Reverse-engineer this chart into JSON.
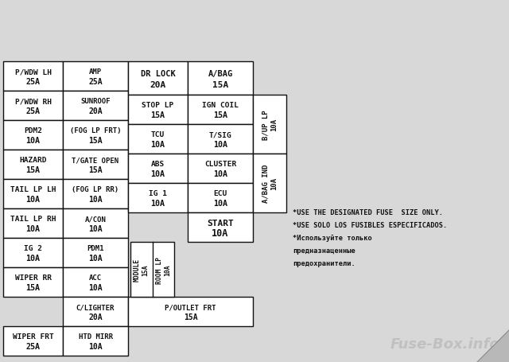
{
  "bg_color": "#e8e8e8",
  "grid_color": "#111111",
  "text_color": "#111111",
  "watermark": "Fuse-Box.info",
  "note_lines": [
    "*USE THE DESIGNATED FUSE  SIZE ONLY.",
    "*USE SOLO LOS FUSIBLES ESPECIFICADOS.",
    "*Используйте только",
    "предназнаценные",
    "предохранители."
  ],
  "left_col1": [
    [
      "P/WDW LH",
      "25A"
    ],
    [
      "P/WDW RH",
      "25A"
    ],
    [
      "PDM2",
      "10A"
    ],
    [
      "HAZARD",
      "15A"
    ],
    [
      "TAIL LP LH",
      "10A"
    ],
    [
      "TAIL LP RH",
      "10A"
    ],
    [
      "IG 2",
      "10A"
    ],
    [
      "WIPER RR",
      "15A"
    ],
    [
      "",
      ""
    ],
    [
      "WIPER FRT",
      "25A"
    ]
  ],
  "left_col2": [
    [
      "AMP",
      "25A"
    ],
    [
      "SUNROOF",
      "20A"
    ],
    [
      "(FOG LP FRT)",
      "15A"
    ],
    [
      "T/GATE OPEN",
      "15A"
    ],
    [
      "(FOG LP RR)",
      "10A"
    ],
    [
      "A/CON",
      "10A"
    ],
    [
      "PDM1",
      "10A"
    ],
    [
      "ACC",
      "10A"
    ],
    [
      "C/LIGHTER",
      "20A"
    ],
    [
      "HTD MIRR",
      "10A"
    ]
  ],
  "top_row": [
    [
      "DR LOCK",
      "20A"
    ],
    [
      "A/BAG",
      "15A"
    ]
  ],
  "right_grid_left": [
    [
      "STOP LP",
      "15A"
    ],
    [
      "TCU",
      "10A"
    ],
    [
      "ABS",
      "10A"
    ],
    [
      "IG 1",
      "10A"
    ]
  ],
  "right_grid_right": [
    [
      "IGN COIL",
      "15A"
    ],
    [
      "T/SIG",
      "10A"
    ],
    [
      "CLUSTER",
      "10A"
    ],
    [
      "ECU",
      "10A"
    ]
  ],
  "start_fuse": [
    "START",
    "10A"
  ],
  "p_outlet": [
    "P/OUTLET FRT",
    "15A"
  ],
  "side_top": [
    "B/UP LP",
    "10A"
  ],
  "side_bot": [
    "A/BAG IND",
    "10A"
  ]
}
